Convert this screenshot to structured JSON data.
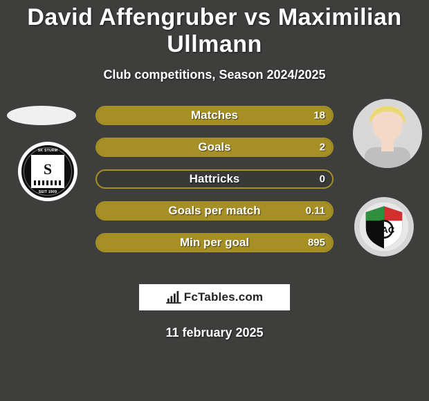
{
  "background_color": "#3e3e3d",
  "accent_color": "#a69025",
  "text_color": "#ffffff",
  "title": "David Affengruber vs Maximilian Ullmann",
  "title_fontsize": 34,
  "subtitle": "Club competitions, Season 2024/2025",
  "subtitle_fontsize": 18,
  "date": "11 february 2025",
  "watermark": "FcTables.com",
  "player_left": {
    "name": "David Affengruber",
    "club_abbr": "SK STURM",
    "club_city": "GRAZ",
    "club_year": "SEIT 1909"
  },
  "player_right": {
    "name": "Maximilian Ullmann",
    "club_abbr": "WAC"
  },
  "stats": [
    {
      "label": "Matches",
      "value_right": "18",
      "left_pct": 0,
      "right_pct": 100
    },
    {
      "label": "Goals",
      "value_right": "2",
      "left_pct": 0,
      "right_pct": 100
    },
    {
      "label": "Hattricks",
      "value_right": "0",
      "left_pct": 0,
      "right_pct": 0
    },
    {
      "label": "Goals per match",
      "value_right": "0.11",
      "left_pct": 0,
      "right_pct": 100
    },
    {
      "label": "Min per goal",
      "value_right": "895",
      "left_pct": 0,
      "right_pct": 100
    }
  ],
  "bar_style": {
    "height": 28,
    "gap": 18,
    "border_radius": 14,
    "border_width": 2,
    "border_color": "#a69025",
    "fill_color": "#a69025",
    "track_color": "rgba(0,0,0,0.08)",
    "label_fontsize": 17,
    "value_fontsize": 15
  }
}
